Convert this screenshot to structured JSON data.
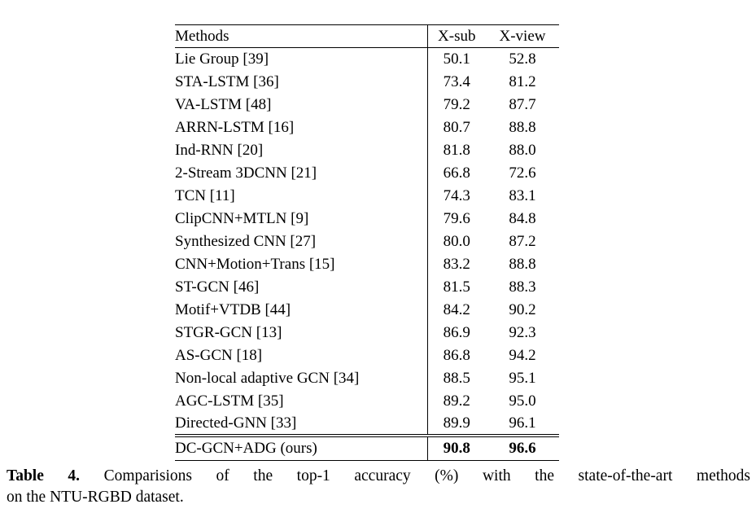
{
  "table": {
    "headers": [
      "Methods",
      "X-sub",
      "X-view"
    ],
    "rows": [
      {
        "method": "Lie Group [39]",
        "xsub": "50.1",
        "xview": "52.8"
      },
      {
        "method": "STA-LSTM [36]",
        "xsub": "73.4",
        "xview": "81.2"
      },
      {
        "method": "VA-LSTM [48]",
        "xsub": "79.2",
        "xview": "87.7"
      },
      {
        "method": "ARRN-LSTM [16]",
        "xsub": "80.7",
        "xview": "88.8"
      },
      {
        "method": "Ind-RNN [20]",
        "xsub": "81.8",
        "xview": "88.0"
      },
      {
        "method": "2-Stream 3DCNN [21]",
        "xsub": "66.8",
        "xview": "72.6"
      },
      {
        "method": "TCN [11]",
        "xsub": "74.3",
        "xview": "83.1"
      },
      {
        "method": "ClipCNN+MTLN [9]",
        "xsub": "79.6",
        "xview": "84.8"
      },
      {
        "method": "Synthesized CNN [27]",
        "xsub": "80.0",
        "xview": "87.2"
      },
      {
        "method": "CNN+Motion+Trans [15]",
        "xsub": "83.2",
        "xview": "88.8"
      },
      {
        "method": "ST-GCN [46]",
        "xsub": "81.5",
        "xview": "88.3"
      },
      {
        "method": "Motif+VTDB [44]",
        "xsub": "84.2",
        "xview": "90.2"
      },
      {
        "method": "STGR-GCN [13]",
        "xsub": "86.9",
        "xview": "92.3"
      },
      {
        "method": "AS-GCN [18]",
        "xsub": "86.8",
        "xview": "94.2"
      },
      {
        "method": "Non-local adaptive GCN [34]",
        "xsub": "88.5",
        "xview": "95.1"
      },
      {
        "method": "AGC-LSTM [35]",
        "xsub": "89.2",
        "xview": "95.0"
      },
      {
        "method": "Directed-GNN [33]",
        "xsub": "89.9",
        "xview": "96.1"
      }
    ],
    "highlight_row": {
      "method": "DC-GCN+ADG (ours)",
      "xsub": "90.8",
      "xview": "96.6"
    }
  },
  "caption": {
    "label": "Table 4.",
    "line1": "Comparisions of the top-1 accuracy (%) with the state-of-the-art methods",
    "line2": "on the NTU-RGBD dataset."
  },
  "colors": {
    "text": "#000000",
    "background": "#ffffff",
    "rule": "#000000"
  }
}
